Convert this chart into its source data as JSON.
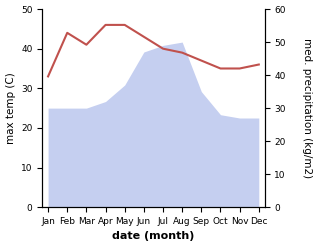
{
  "months": [
    "Jan",
    "Feb",
    "Mar",
    "Apr",
    "May",
    "Jun",
    "Jul",
    "Aug",
    "Sep",
    "Oct",
    "Nov",
    "Dec"
  ],
  "temperature": [
    33,
    44,
    41,
    46,
    46,
    43,
    40,
    39,
    37,
    35,
    35,
    36
  ],
  "precipitation": [
    30,
    30,
    30,
    32,
    37,
    47,
    49,
    50,
    35,
    28,
    27,
    27
  ],
  "temp_color": "#c0514d",
  "precip_fill_color": "#c5cff0",
  "precip_edge_color": "#aab4e8",
  "ylabel_left": "max temp (C)",
  "ylabel_right": "med. precipitation (kg/m2)",
  "xlabel": "date (month)",
  "ylim_left": [
    0,
    50
  ],
  "ylim_right": [
    0,
    60
  ],
  "yticks_left": [
    0,
    10,
    20,
    30,
    40,
    50
  ],
  "yticks_right": [
    0,
    10,
    20,
    30,
    40,
    50,
    60
  ],
  "background_color": "#ffffff",
  "label_fontsize": 7.5,
  "tick_fontsize": 6.5,
  "xlabel_fontsize": 8,
  "linewidth": 1.5
}
